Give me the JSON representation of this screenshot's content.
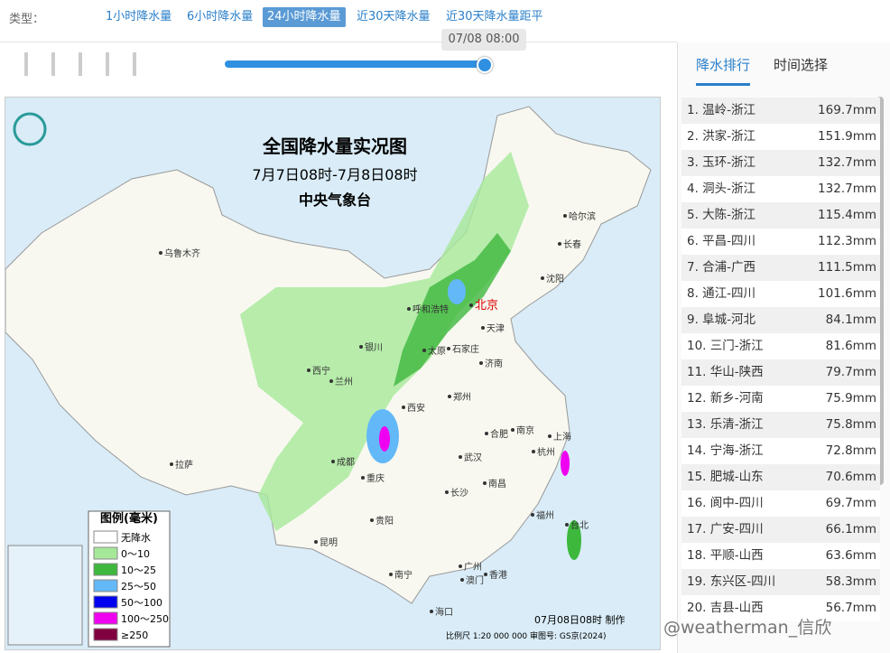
{
  "toolbar": {
    "type_label": "类型：",
    "tabs": [
      "1小时降水量",
      "6小时降水量",
      "24小时降水量",
      "近30天降水量",
      "近30天降水量距平"
    ],
    "active_tab": 2,
    "time": "07/08 08:00"
  },
  "side_panel": {
    "tabs": [
      "降水排行",
      "时间选择"
    ],
    "rows": [
      {
        "name": "1. 温岭-浙江",
        "value": "169.7mm"
      },
      {
        "name": "2. 洪家-浙江",
        "value": "151.9mm"
      },
      {
        "name": "3. 玉环-浙江",
        "value": "132.7mm"
      },
      {
        "name": "4. 洞头-浙江",
        "value": "132.7mm"
      },
      {
        "name": "5. 大陈-浙江",
        "value": "115.4mm"
      },
      {
        "name": "6. 平昌-四川",
        "value": "112.3mm"
      },
      {
        "name": "7. 合浦-广西",
        "value": "111.5mm"
      },
      {
        "name": "8. 通江-四川",
        "value": "101.6mm"
      },
      {
        "name": "9. 阜城-河北",
        "value": "84.1mm"
      },
      {
        "name": "10. 三门-浙江",
        "value": "81.6mm"
      },
      {
        "name": "11. 华山-陕西",
        "value": "79.7mm"
      },
      {
        "name": "12. 新乡-河南",
        "value": "75.9mm"
      },
      {
        "name": "13. 乐清-浙江",
        "value": "75.8mm"
      },
      {
        "name": "14. 宁海-浙江",
        "value": "72.8mm"
      },
      {
        "name": "15. 肥城-山东",
        "value": "70.6mm"
      },
      {
        "name": "16. 阆中-四川",
        "value": "69.7mm"
      },
      {
        "name": "17. 广安-四川",
        "value": "66.1mm"
      },
      {
        "name": "18. 平顺-山西",
        "value": "63.6mm"
      },
      {
        "name": "19. 东兴区-四川",
        "value": "58.3mm"
      },
      {
        "name": "20. 吉县-山西",
        "value": "56.7mm"
      }
    ]
  },
  "map": {
    "title": "全国降水量实况图",
    "period": "7月7日08时-7月8日08时",
    "source": "中央气象台",
    "legend": {
      "title": "图例(毫米)",
      "items": [
        {
          "label": "无降水",
          "color": "#ffffff"
        },
        {
          "label": "0～10",
          "color": "#a6e89a"
        },
        {
          "label": "10～25",
          "color": "#3db83d"
        },
        {
          "label": "25～50",
          "color": "#63b8f7"
        },
        {
          "label": "50～100",
          "color": "#0000f0"
        },
        {
          "label": "100～250",
          "color": "#f000f0"
        },
        {
          "label": "≥250",
          "color": "#800040"
        }
      ]
    },
    "cities": [
      {
        "name": "乌鲁木齐"
      },
      {
        "name": "哈尔滨"
      },
      {
        "name": "长春"
      },
      {
        "name": "沈阳"
      },
      {
        "name": "北京"
      },
      {
        "name": "呼和浩特"
      },
      {
        "name": "天津"
      },
      {
        "name": "银川"
      },
      {
        "name": "太原"
      },
      {
        "name": "石家庄"
      },
      {
        "name": "济南"
      },
      {
        "name": "西宁"
      },
      {
        "name": "兰州"
      },
      {
        "name": "郑州"
      },
      {
        "name": "西安"
      },
      {
        "name": "合肥"
      },
      {
        "name": "南京"
      },
      {
        "name": "上海"
      },
      {
        "name": "杭州"
      },
      {
        "name": "成都"
      },
      {
        "name": "武汉"
      },
      {
        "name": "拉萨"
      },
      {
        "name": "重庆"
      },
      {
        "name": "长沙"
      },
      {
        "name": "南昌"
      },
      {
        "name": "贵阳"
      },
      {
        "name": "福州"
      },
      {
        "name": "台北"
      },
      {
        "name": "昆明"
      },
      {
        "name": "南宁"
      },
      {
        "name": "广州"
      },
      {
        "name": "香港"
      },
      {
        "name": "澳门"
      },
      {
        "name": "海口"
      }
    ],
    "made": "07月08日08时 制作",
    "scale": "比例尺 1:20 000 000   审图号: GS京(2024)"
  },
  "watermark": "@weatherman_信欣"
}
